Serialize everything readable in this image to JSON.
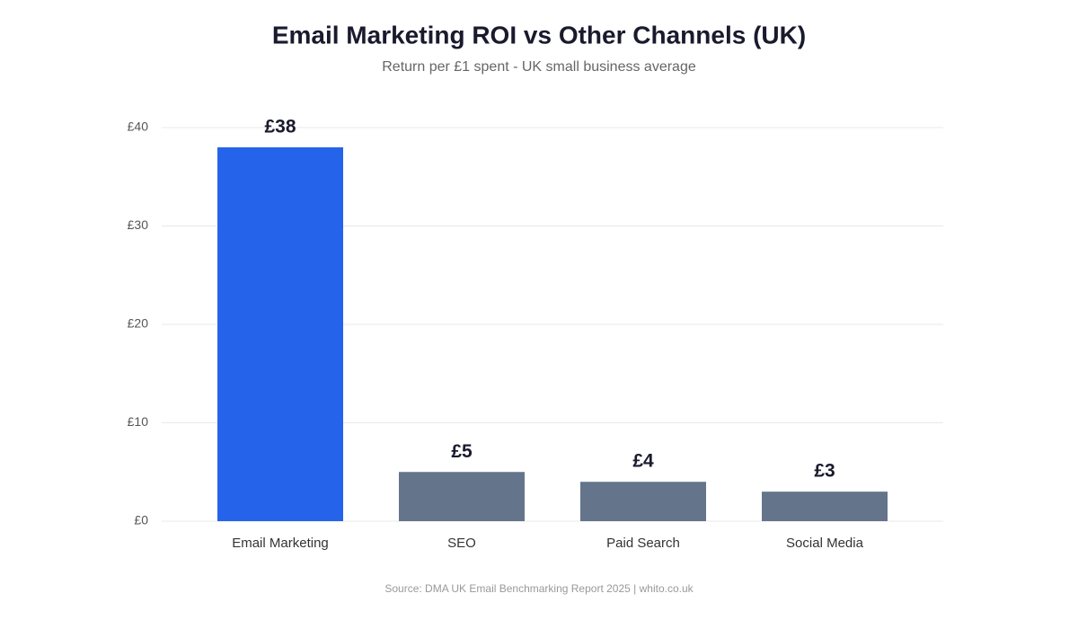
{
  "chart_data": {
    "type": "bar",
    "title": "Email Marketing ROI vs Other Channels (UK)",
    "subtitle": "Return per £1 spent - UK small business average",
    "source": "Source: DMA UK Email Benchmarking Report 2025 | whito.co.uk",
    "categories": [
      "Email Marketing",
      "SEO",
      "Paid Search",
      "Social Media"
    ],
    "values": [
      38,
      5,
      4,
      3
    ],
    "value_labels": [
      "£38",
      "£5",
      "£4",
      "£3"
    ],
    "colors": [
      "#2563eb",
      "#64748b",
      "#64748b",
      "#64748b"
    ],
    "ylim": [
      0,
      40
    ],
    "yticks": [
      {
        "value": 0,
        "label": "£0"
      },
      {
        "value": 10,
        "label": "£10"
      },
      {
        "value": 20,
        "label": "£20"
      },
      {
        "value": 30,
        "label": "£30"
      },
      {
        "value": 40,
        "label": "£40"
      }
    ],
    "grid": true
  }
}
